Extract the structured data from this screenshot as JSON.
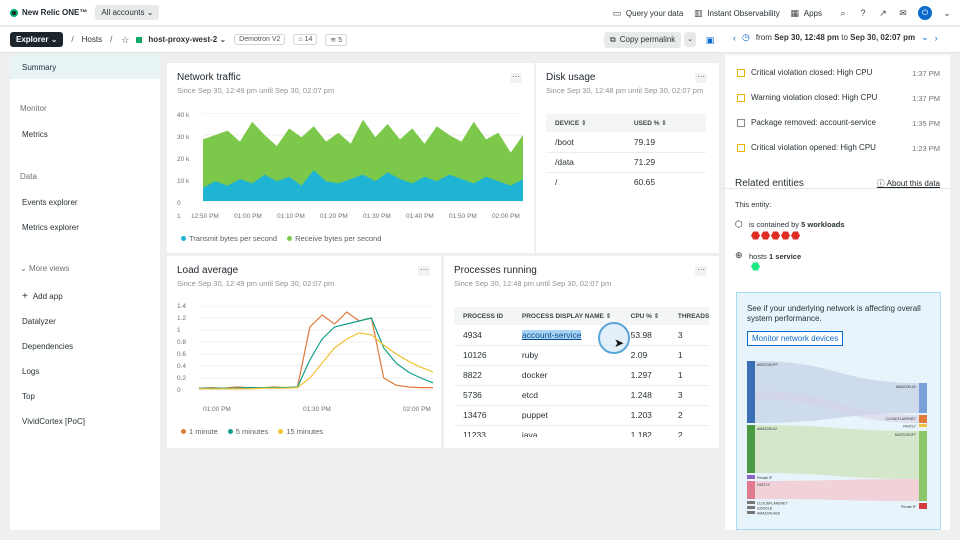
{
  "topbar": {
    "logo": "New Relic ONE™",
    "account": "All accounts",
    "query": "Query your data",
    "instant": "Instant Observability",
    "apps": "Apps"
  },
  "crumbs": {
    "explorer": "Explorer",
    "hosts": "Hosts",
    "host": "host-proxy-west-2",
    "demotron": "Demotron V2",
    "tags": "14",
    "entities": "5",
    "permalink": "Copy permalink",
    "time_from_label": "from",
    "time_from": "Sep 30, 12:48 pm",
    "time_to_label": "to",
    "time_to": "Sep 30, 02:07 pm"
  },
  "sidebar": {
    "summary": "Summary",
    "monitor": "Monitor",
    "metrics": "Metrics",
    "data": "Data",
    "events": "Events explorer",
    "metrics_explorer": "Metrics explorer",
    "more_views": "More views",
    "add_app": "Add app",
    "items": [
      "Datalyzer",
      "Dependencies",
      "Logs",
      "Top",
      "VividCortex [PoC]"
    ]
  },
  "network": {
    "title": "Network traffic",
    "subtitle": "Since Sep 30, 12:49 pm until Sep 30, 02:07 pm",
    "legend_tx": "Transmit bytes per second",
    "legend_rx": "Receive bytes per second",
    "colors": {
      "tx": "#1fb3d4",
      "rx": "#7cc84a"
    }
  },
  "disk": {
    "title": "Disk usage",
    "subtitle": "Since Sep 30, 12:48 pm until Sep 30, 02:07 pm",
    "col_device": "DEVICE",
    "col_used": "USED %",
    "rows": [
      {
        "device": "/boot",
        "used": "79.19"
      },
      {
        "device": "/data",
        "used": "71.29"
      },
      {
        "device": "/",
        "used": "60.65"
      }
    ]
  },
  "load": {
    "title": "Load average",
    "subtitle": "Since Sep 30, 12:49 pm until Sep 30, 02:07 pm",
    "legend": [
      "1 minute",
      "5 minutes",
      "15 minutes"
    ],
    "colors": [
      "#e0783a",
      "#12a08c",
      "#f2c230"
    ]
  },
  "processes": {
    "title": "Processes running",
    "subtitle": "Since Sep 30, 12:48 pm until Sep 30, 02:07 pm",
    "cols": [
      "PROCESS ID",
      "PROCESS DISPLAY NAME",
      "CPU %",
      "THREADS"
    ],
    "rows": [
      {
        "pid": "4934",
        "name": "account-service",
        "cpu": "53.98",
        "threads": "3"
      },
      {
        "pid": "10126",
        "name": "ruby",
        "cpu": "2.09",
        "threads": "1"
      },
      {
        "pid": "8822",
        "name": "docker",
        "cpu": "1.297",
        "threads": "1"
      },
      {
        "pid": "5736",
        "name": "etcd",
        "cpu": "1.248",
        "threads": "3"
      },
      {
        "pid": "13476",
        "name": "puppet",
        "cpu": "1.203",
        "threads": "2"
      },
      {
        "pid": "11233",
        "name": "java",
        "cpu": "1.182",
        "threads": "2"
      }
    ]
  },
  "activity": [
    {
      "text": "Critical violation closed: High CPU",
      "time": "1:37 PM"
    },
    {
      "text": "Warning violation closed: High CPU",
      "time": "1:37 PM"
    },
    {
      "text": "Package removed: account-service",
      "time": "1:35 PM"
    },
    {
      "text": "Critical violation opened: High CPU",
      "time": "1:23 PM"
    }
  ],
  "related": {
    "title": "Related entities",
    "about": "About this data",
    "this_entity": "This entity:",
    "contained_prefix": "is contained by",
    "contained_count": "5 workloads",
    "hosts_prefix": "hosts",
    "hosts_count": "1 service"
  },
  "network_promo": {
    "text": "See if your underlying network is affecting overall system performance.",
    "button": "Monitor network devices",
    "left_labels": [
      "MICROSOFT",
      "AMAZON-02",
      "Private IP",
      "FASTLY",
      "CLOUDFLARENET",
      "GOOGLE",
      "AMAZON-AES"
    ],
    "right_labels": [
      "AMAZON-02",
      "CLOUDFLARENET",
      "FASTLY",
      "MICROSOFT",
      "Private IP"
    ]
  },
  "chart_data": [
    {
      "type": "area",
      "title": "Network traffic",
      "x_ticks": [
        "12:50 PM",
        "01:00 PM",
        "01:10 PM",
        "01:20 PM",
        "01:30 PM",
        "01:40 PM",
        "01:50 PM",
        "02:00 PM"
      ],
      "y_ticks": [
        "40 k",
        "30 k",
        "20 k",
        "10 k",
        "0"
      ],
      "ylim": [
        0,
        40000
      ],
      "series": [
        {
          "name": "Transmit bytes per second",
          "values": [
            6000,
            9000,
            7000,
            10000,
            8000,
            12000,
            9000,
            11000,
            7000,
            14000,
            9000,
            8000,
            10000,
            12000,
            9000,
            13000,
            10000,
            8000,
            11000,
            9000,
            12000,
            10000,
            8000,
            11000,
            9000,
            7000,
            10000
          ]
        },
        {
          "name": "Receive bytes per second",
          "values": [
            28000,
            30000,
            32000,
            27000,
            36000,
            30000,
            25000,
            33000,
            29000,
            34000,
            27000,
            31000,
            26000,
            37000,
            29000,
            35000,
            28000,
            33000,
            26000,
            34000,
            30000,
            27000,
            36000,
            28000,
            31000,
            22000,
            30000
          ]
        }
      ]
    },
    {
      "type": "line",
      "title": "Load average",
      "x_ticks": [
        "01:00 PM",
        "01:30 PM",
        "02:00 PM"
      ],
      "y_ticks": [
        "1.4",
        "1.2",
        "1",
        "0.8",
        "0.6",
        "0.4",
        "0.2",
        "0"
      ],
      "ylim": [
        0,
        1.4
      ],
      "x": [
        0,
        5,
        10,
        15,
        20,
        25,
        30,
        35,
        40,
        45,
        50,
        55,
        60,
        65,
        70,
        75,
        80,
        85,
        90,
        95
      ],
      "series": [
        {
          "name": "1 minute",
          "values": [
            0.03,
            0.04,
            0.03,
            0.05,
            0.04,
            0.03,
            0.05,
            0.04,
            0.05,
            1.05,
            1.25,
            1.1,
            1.3,
            1.15,
            1.2,
            0.2,
            0.08,
            0.05,
            0.04,
            0.04
          ]
        },
        {
          "name": "5 minutes",
          "values": [
            0.03,
            0.03,
            0.03,
            0.03,
            0.04,
            0.04,
            0.04,
            0.04,
            0.05,
            0.5,
            0.85,
            1.05,
            1.1,
            1.15,
            1.2,
            0.7,
            0.45,
            0.3,
            0.2,
            0.12
          ]
        },
        {
          "name": "15 minutes",
          "values": [
            0.02,
            0.02,
            0.02,
            0.02,
            0.02,
            0.03,
            0.03,
            0.03,
            0.04,
            0.2,
            0.45,
            0.7,
            0.85,
            0.95,
            0.92,
            0.75,
            0.6,
            0.48,
            0.38,
            0.3
          ]
        }
      ]
    }
  ]
}
